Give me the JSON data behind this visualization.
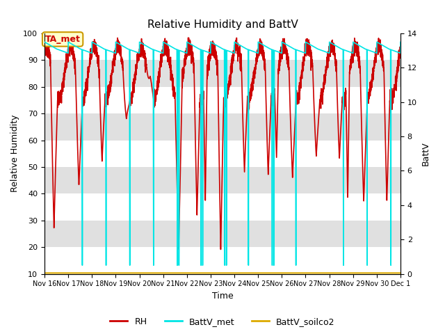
{
  "title": "Relative Humidity and BattV",
  "xlabel": "Time",
  "ylabel_left": "Relative Humidity",
  "ylabel_right": "BattV",
  "ylim_left": [
    10,
    100
  ],
  "ylim_right": [
    0,
    14
  ],
  "yticks_left": [
    10,
    20,
    30,
    40,
    50,
    60,
    70,
    80,
    90,
    100
  ],
  "yticks_right": [
    0,
    2,
    4,
    6,
    8,
    10,
    12,
    14
  ],
  "bg_color": "#ffffff",
  "rh_color": "#cc0000",
  "battv_met_color": "#00e5e5",
  "battv_soilco2_color": "#ddaa00",
  "legend_labels": [
    "RH",
    "BattV_met",
    "BattV_soilco2"
  ],
  "annotation_text": "TA_met",
  "annotation_bg": "#ffffcc",
  "annotation_border": "#cc9900",
  "band_color": "#e0e0e0",
  "day_labels": [
    "Nov 16",
    "Nov 17",
    "Nov 18",
    "Nov 19",
    "Nov 20",
    "Nov 21",
    "Nov 22",
    "Nov 23",
    "Nov 24",
    "Nov 25",
    "Nov 26",
    "Nov 27",
    "Nov 28",
    "Nov 29",
    "Nov 30",
    "Dec 1"
  ]
}
